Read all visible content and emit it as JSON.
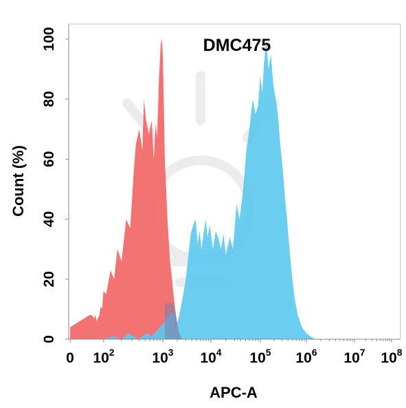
{
  "chart_data": {
    "type": "area",
    "title": "DMC475",
    "xlabel": "APC-A",
    "ylabel": "Count  (%)",
    "x_scale": "log",
    "xlim": [
      0,
      100000000
    ],
    "ylim": [
      0,
      105
    ],
    "x_tick_labels": [
      {
        "base": "0",
        "exp": ""
      },
      {
        "base": "10",
        "exp": "2"
      },
      {
        "base": "10",
        "exp": "3"
      },
      {
        "base": "10",
        "exp": "4"
      },
      {
        "base": "10",
        "exp": "5"
      },
      {
        "base": "10",
        "exp": "6"
      },
      {
        "base": "10",
        "exp": "7"
      },
      {
        "base": "10",
        "exp": "8"
      }
    ],
    "y_tick_labels": [
      "0",
      "20",
      "40",
      "60",
      "80",
      "100"
    ],
    "grid": false,
    "legend": "none",
    "series": [
      {
        "color": "#f26b6b",
        "x": [
          1,
          14,
          20,
          26,
          32,
          38,
          45,
          55,
          65,
          80,
          95,
          110,
          130,
          150,
          170,
          200,
          240,
          280,
          320,
          350,
          400,
          450,
          480,
          520,
          580,
          650,
          700,
          760,
          800,
          860,
          920,
          960,
          1000,
          1050,
          1100,
          1250,
          1400,
          1600,
          1800,
          2000,
          2200,
          2500
        ],
        "y": [
          4,
          8,
          8,
          7,
          8,
          6,
          7,
          8,
          11,
          10,
          16,
          15,
          23,
          20,
          30,
          26,
          40,
          37,
          55,
          65,
          70,
          63,
          80,
          73,
          68,
          73,
          60,
          72,
          67,
          87,
          98,
          100,
          95,
          78,
          60,
          40,
          27,
          18,
          10,
          5,
          2,
          0
        ]
      },
      {
        "color": "#5bc8ee",
        "x": [
          1500,
          1800,
          2200,
          2600,
          3000,
          3400,
          3800,
          4300,
          4800,
          5300,
          5800,
          6400,
          7000,
          7800,
          8500,
          9500,
          11000,
          12500,
          14000,
          16000,
          18000,
          20000,
          24000,
          28000,
          33000,
          38000,
          45000,
          52000,
          60000,
          70000,
          80000,
          90000,
          100000,
          110000,
          120000,
          135000,
          150000,
          170000,
          190000,
          215000,
          240000,
          270000,
          300000,
          340000,
          380000,
          430000,
          480000,
          550000,
          650000,
          800000,
          1000000,
          1200000,
          1500000
        ],
        "y": [
          0,
          3,
          8,
          14,
          20,
          28,
          35,
          38,
          40,
          32,
          36,
          30,
          35,
          40,
          34,
          38,
          30,
          36,
          34,
          30,
          35,
          28,
          34,
          30,
          45,
          40,
          50,
          63,
          70,
          80,
          75,
          78,
          88,
          82,
          92,
          100,
          90,
          95,
          85,
          80,
          75,
          65,
          58,
          48,
          40,
          30,
          22,
          14,
          8,
          4,
          2,
          1,
          0
        ]
      },
      {
        "color": "#5bc8ee",
        "x": [
          1,
          80,
          150,
          200,
          260,
          320,
          380,
          450,
          550,
          650,
          800,
          1000,
          1200,
          1500,
          1800
        ],
        "y": [
          0,
          0,
          1,
          0,
          2,
          1,
          0,
          1,
          2,
          1,
          3,
          5,
          7,
          9,
          8
        ]
      }
    ]
  }
}
